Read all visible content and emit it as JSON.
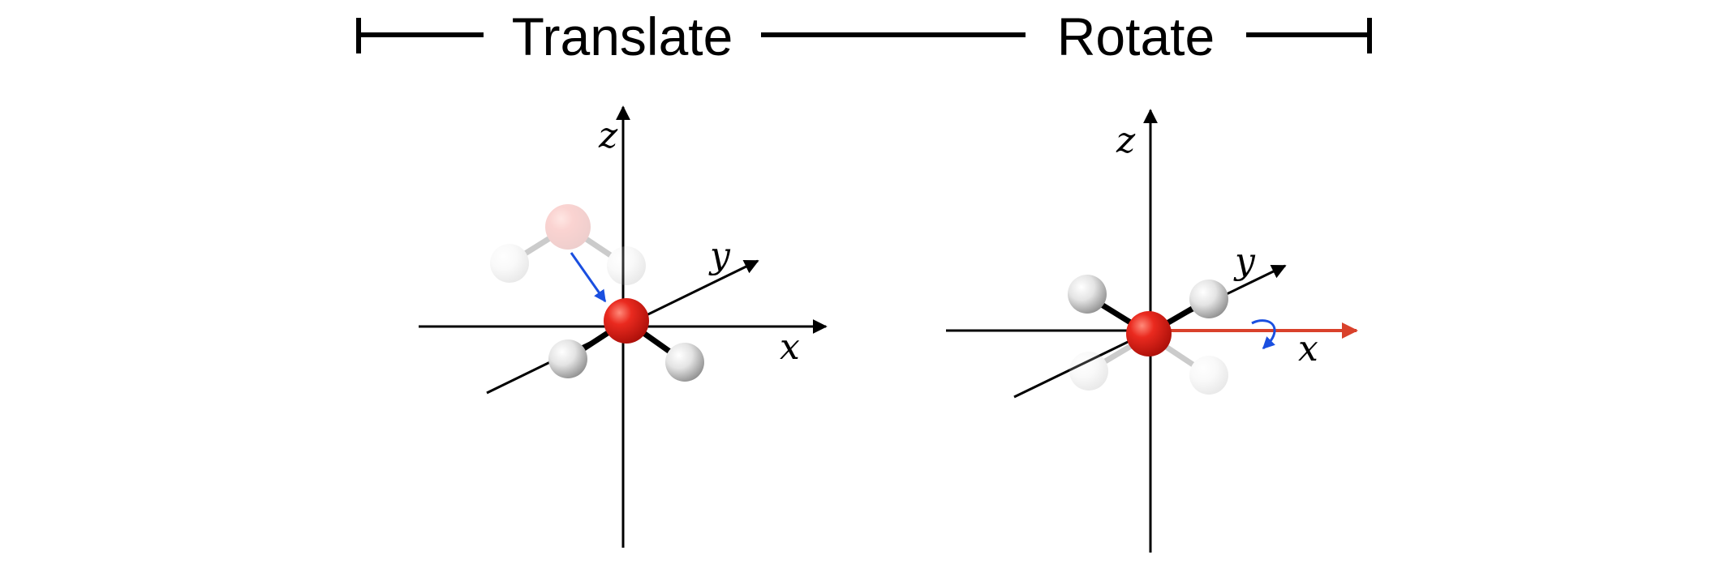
{
  "header": {
    "left_label": "Translate",
    "right_label": "Rotate"
  },
  "panels": [
    {
      "id": "translate",
      "axes": {
        "x": "x",
        "y": "y",
        "z": "z"
      }
    },
    {
      "id": "rotate",
      "axes": {
        "x": "x",
        "y": "y",
        "z": "z"
      }
    }
  ],
  "colors": {
    "line": "#000000",
    "oxygen": "#e0211a",
    "hydrogen": "#e6e6e6",
    "motion_arrow": "#1a4fe0",
    "rotation_axis": "#d9412b"
  }
}
